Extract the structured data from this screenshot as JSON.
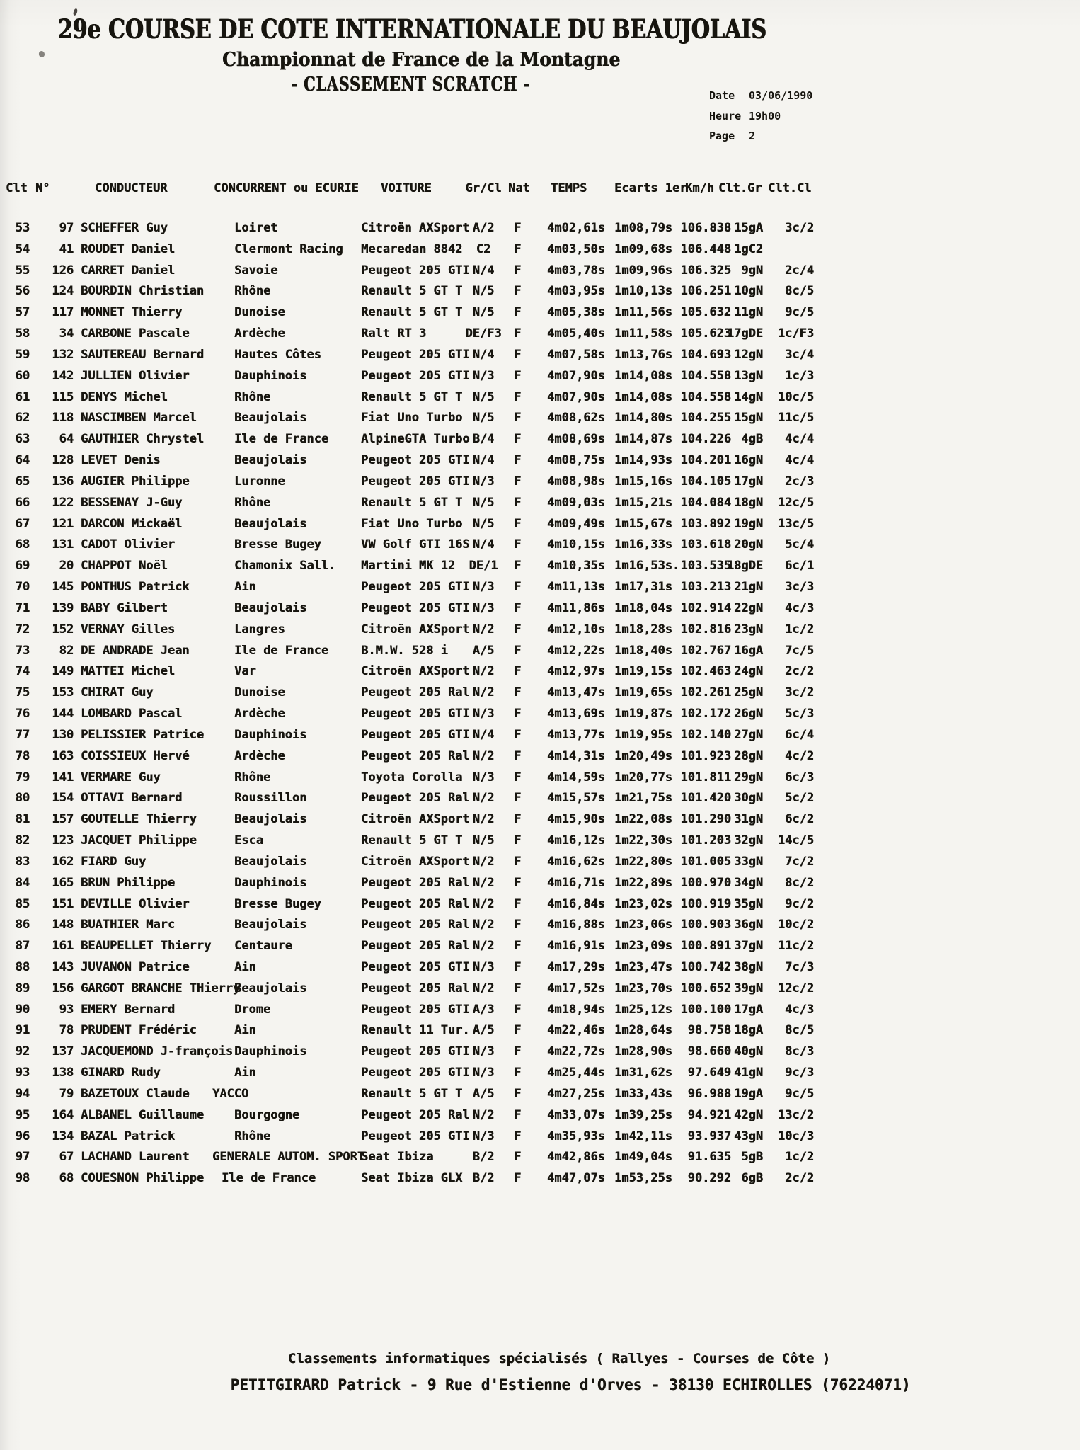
{
  "page": {
    "title": "29e COURSE DE COTE INTERNATIONALE DU BEAUJOLAIS",
    "subtitle": "Championnat de France de la Montagne",
    "section_title": "- CLASSEMENT SCRATCH -",
    "date": {
      "label": "Date",
      "value": "03/06/1990"
    },
    "heure": {
      "label": "Heure",
      "value": "19h00"
    },
    "page_number": {
      "label": "Page",
      "value": "2"
    }
  },
  "table": {
    "columns": {
      "clt": "Clt",
      "num": "N°",
      "driver": "CONDUCTEUR",
      "team": "CONCURRENT ou ECURIE",
      "car": "VOITURE",
      "gr_cl": "Gr/Cl",
      "nat": "Nat",
      "temps": "TEMPS",
      "ecart": "Ecarts 1er",
      "kmh": "Km/h",
      "clt_gr": "Clt.Gr",
      "clt_cl": "Clt.Cl"
    },
    "keys": [
      "clt",
      "num",
      "driver",
      "team",
      "car",
      "gr_cl",
      "nat",
      "temps",
      "ecart",
      "kmh",
      "clt_gr",
      "clt_cl"
    ],
    "rows": [
      [
        "53",
        "97",
        "SCHEFFER Guy",
        "Loiret",
        "Citroën AXSport",
        "A/2",
        "F",
        "4m02,61s",
        "1m08,79s",
        "106.838",
        "15gA",
        "3c/2"
      ],
      [
        "54",
        "41",
        "ROUDET Daniel",
        "Clermont Racing",
        "Mecaredan 8842",
        "C2",
        "F",
        "4m03,50s",
        "1m09,68s",
        "106.448",
        "1gC2",
        ""
      ],
      [
        "55",
        "126",
        "CARRET Daniel",
        "Savoie",
        "Peugeot 205 GTI",
        "N/4",
        "F",
        "4m03,78s",
        "1m09,96s",
        "106.325",
        "9gN",
        "2c/4"
      ],
      [
        "56",
        "124",
        "BOURDIN Christian",
        "Rhône",
        "Renault 5 GT T",
        "N/5",
        "F",
        "4m03,95s",
        "1m10,13s",
        "106.251",
        "10gN",
        "8c/5"
      ],
      [
        "57",
        "117",
        "MONNET Thierry",
        "Dunoise",
        "Renault 5 GT T",
        "N/5",
        "F",
        "4m05,38s",
        "1m11,56s",
        "105.632",
        "11gN",
        "9c/5"
      ],
      [
        "58",
        "34",
        "CARBONE Pascale",
        "Ardèche",
        "Ralt RT 3",
        "DE/F3",
        "F",
        "4m05,40s",
        "1m11,58s",
        "105.623",
        "17gDE",
        "1c/F3"
      ],
      [
        "59",
        "132",
        "SAUTEREAU Bernard",
        "Hautes Côtes",
        "Peugeot 205 GTI",
        "N/4",
        "F",
        "4m07,58s",
        "1m13,76s",
        "104.693",
        "12gN",
        "3c/4"
      ],
      [
        "60",
        "142",
        "JULLIEN Olivier",
        "Dauphinois",
        "Peugeot 205 GTI",
        "N/3",
        "F",
        "4m07,90s",
        "1m14,08s",
        "104.558",
        "13gN",
        "1c/3"
      ],
      [
        "61",
        "115",
        "DENYS Michel",
        "Rhône",
        "Renault 5 GT T",
        "N/5",
        "F",
        "4m07,90s",
        "1m14,08s",
        "104.558",
        "14gN",
        "10c/5"
      ],
      [
        "62",
        "118",
        "NASCIMBEN Marcel",
        "Beaujolais",
        "Fiat Uno Turbo",
        "N/5",
        "F",
        "4m08,62s",
        "1m14,80s",
        "104.255",
        "15gN",
        "11c/5"
      ],
      [
        "63",
        "64",
        "GAUTHIER Chrystel",
        "Ile de France",
        "AlpineGTA Turbo",
        "B/4",
        "F",
        "4m08,69s",
        "1m14,87s",
        "104.226",
        "4gB",
        "4c/4"
      ],
      [
        "64",
        "128",
        "LEVET Denis",
        "Beaujolais",
        "Peugeot 205 GTI",
        "N/4",
        "F",
        "4m08,75s",
        "1m14,93s",
        "104.201",
        "16gN",
        "4c/4"
      ],
      [
        "65",
        "136",
        "AUGIER Philippe",
        "Luronne",
        "Peugeot 205 GTI",
        "N/3",
        "F",
        "4m08,98s",
        "1m15,16s",
        "104.105",
        "17gN",
        "2c/3"
      ],
      [
        "66",
        "122",
        "BESSENAY J-Guy",
        "Rhône",
        "Renault 5 GT T",
        "N/5",
        "F",
        "4m09,03s",
        "1m15,21s",
        "104.084",
        "18gN",
        "12c/5"
      ],
      [
        "67",
        "121",
        "DARCON Mickaël",
        "Beaujolais",
        "Fiat Uno Turbo",
        "N/5",
        "F",
        "4m09,49s",
        "1m15,67s",
        "103.892",
        "19gN",
        "13c/5"
      ],
      [
        "68",
        "131",
        "CADOT Olivier",
        "Bresse Bugey",
        "VW Golf GTI 16S",
        "N/4",
        "F",
        "4m10,15s",
        "1m16,33s",
        "103.618",
        "20gN",
        "5c/4"
      ],
      [
        "69",
        "20",
        "CHAPPOT Noël",
        "Chamonix Sall.",
        "Martini MK 12",
        "DE/1",
        "F",
        "4m10,35s",
        "1m16,53s.",
        "103.535",
        "18gDE",
        "6c/1"
      ],
      [
        "70",
        "145",
        "PONTHUS Patrick",
        "Ain",
        "Peugeot 205 GTI",
        "N/3",
        "F",
        "4m11,13s",
        "1m17,31s",
        "103.213",
        "21gN",
        "3c/3"
      ],
      [
        "71",
        "139",
        "BABY Gilbert",
        "Beaujolais",
        "Peugeot 205 GTI",
        "N/3",
        "F",
        "4m11,86s",
        "1m18,04s",
        "102.914",
        "22gN",
        "4c/3"
      ],
      [
        "72",
        "152",
        "VERNAY Gilles",
        "Langres",
        "Citroën AXSport",
        "N/2",
        "F",
        "4m12,10s",
        "1m18,28s",
        "102.816",
        "23gN",
        "1c/2"
      ],
      [
        "73",
        "82",
        "DE ANDRADE Jean",
        "Ile de France",
        "B.M.W. 528 i",
        "A/5",
        "F",
        "4m12,22s",
        "1m18,40s",
        "102.767",
        "16gA",
        "7c/5"
      ],
      [
        "74",
        "149",
        "MATTEI Michel",
        "Var",
        "Citroën AXSport",
        "N/2",
        "F",
        "4m12,97s",
        "1m19,15s",
        "102.463",
        "24gN",
        "2c/2"
      ],
      [
        "75",
        "153",
        "CHIRAT Guy",
        "Dunoise",
        "Peugeot 205 Ral",
        "N/2",
        "F",
        "4m13,47s",
        "1m19,65s",
        "102.261",
        "25gN",
        "3c/2"
      ],
      [
        "76",
        "144",
        "LOMBARD Pascal",
        "Ardèche",
        "Peugeot 205 GTI",
        "N/3",
        "F",
        "4m13,69s",
        "1m19,87s",
        "102.172",
        "26gN",
        "5c/3"
      ],
      [
        "77",
        "130",
        "PELISSIER Patrice",
        "Dauphinois",
        "Peugeot 205 GTI",
        "N/4",
        "F",
        "4m13,77s",
        "1m19,95s",
        "102.140",
        "27gN",
        "6c/4"
      ],
      [
        "78",
        "163",
        "COISSIEUX Hervé",
        "Ardèche",
        "Peugeot 205 Ral",
        "N/2",
        "F",
        "4m14,31s",
        "1m20,49s",
        "101.923",
        "28gN",
        "4c/2"
      ],
      [
        "79",
        "141",
        "VERMARE Guy",
        "Rhône",
        "Toyota Corolla",
        "N/3",
        "F",
        "4m14,59s",
        "1m20,77s",
        "101.811",
        "29gN",
        "6c/3"
      ],
      [
        "80",
        "154",
        "OTTAVI Bernard",
        "Roussillon",
        "Peugeot 205 Ral",
        "N/2",
        "F",
        "4m15,57s",
        "1m21,75s",
        "101.420",
        "30gN",
        "5c/2"
      ],
      [
        "81",
        "157",
        "GOUTELLE Thierry",
        "Beaujolais",
        "Citroën AXSport",
        "N/2",
        "F",
        "4m15,90s",
        "1m22,08s",
        "101.290",
        "31gN",
        "6c/2"
      ],
      [
        "82",
        "123",
        "JACQUET Philippe",
        "Esca",
        "Renault 5 GT T",
        "N/5",
        "F",
        "4m16,12s",
        "1m22,30s",
        "101.203",
        "32gN",
        "14c/5"
      ],
      [
        "83",
        "162",
        "FIARD Guy",
        "Beaujolais",
        "Citroën AXSport",
        "N/2",
        "F",
        "4m16,62s",
        "1m22,80s",
        "101.005",
        "33gN",
        "7c/2"
      ],
      [
        "84",
        "165",
        "BRUN Philippe",
        "Dauphinois",
        "Peugeot 205 Ral",
        "N/2",
        "F",
        "4m16,71s",
        "1m22,89s",
        "100.970",
        "34gN",
        "8c/2"
      ],
      [
        "85",
        "151",
        "DEVILLE Olivier",
        "Bresse Bugey",
        "Peugeot 205 Ral",
        "N/2",
        "F",
        "4m16,84s",
        "1m23,02s",
        "100.919",
        "35gN",
        "9c/2"
      ],
      [
        "86",
        "148",
        "BUATHIER Marc",
        "Beaujolais",
        "Peugeot 205 Ral",
        "N/2",
        "F",
        "4m16,88s",
        "1m23,06s",
        "100.903",
        "36gN",
        "10c/2"
      ],
      [
        "87",
        "161",
        "BEAUPELLET Thierry",
        "Centaure",
        "Peugeot 205 Ral",
        "N/2",
        "F",
        "4m16,91s",
        "1m23,09s",
        "100.891",
        "37gN",
        "11c/2"
      ],
      [
        "88",
        "143",
        "JUVANON Patrice",
        "Ain",
        "Peugeot 205 GTI",
        "N/3",
        "F",
        "4m17,29s",
        "1m23,47s",
        "100.742",
        "38gN",
        "7c/3"
      ],
      [
        "89",
        "156",
        "GARGOT BRANCHE THierry",
        "Beaujolais",
        "Peugeot 205 Ral",
        "N/2",
        "F",
        "4m17,52s",
        "1m23,70s",
        "100.652",
        "39gN",
        "12c/2"
      ],
      [
        "90",
        "93",
        "EMERY Bernard",
        "Drome",
        "Peugeot 205 GTI",
        "A/3",
        "F",
        "4m18,94s",
        "1m25,12s",
        "100.100",
        "17gA",
        "4c/3"
      ],
      [
        "91",
        "78",
        "PRUDENT Frédéric",
        "Ain",
        "Renault 11 Tur.",
        "A/5",
        "F",
        "4m22,46s",
        "1m28,64s",
        "98.758",
        "18gA",
        "8c/5"
      ],
      [
        "92",
        "137",
        "JACQUEMOND J-françois",
        "Dauphinois",
        "Peugeot 205 GTI",
        "N/3",
        "F",
        "4m22,72s",
        "1m28,90s",
        "98.660",
        "40gN",
        "8c/3"
      ],
      [
        "93",
        "138",
        "GINARD Rudy",
        "Ain",
        "Peugeot 205 GTI",
        "N/3",
        "F",
        "4m25,44s",
        "1m31,62s",
        "97.649",
        "41gN",
        "9c/3"
      ],
      [
        "94",
        "79",
        "BAZETOUX Claude",
        "YACCO",
        "Renault 5 GT T",
        "A/5",
        "F",
        "4m27,25s",
        "1m33,43s",
        "96.988",
        "19gA",
        "9c/5"
      ],
      [
        "95",
        "164",
        "ALBANEL Guillaume",
        "Bourgogne",
        "Peugeot 205 Ral",
        "N/2",
        "F",
        "4m33,07s",
        "1m39,25s",
        "94.921",
        "42gN",
        "13c/2"
      ],
      [
        "96",
        "134",
        "BAZAL Patrick",
        "Rhône",
        "Peugeot 205 GTI",
        "N/3",
        "F",
        "4m35,93s",
        "1m42,11s",
        "93.937",
        "43gN",
        "10c/3"
      ],
      [
        "97",
        "67",
        "LACHAND Laurent",
        "GENERALE AUTOM. SPORT",
        "Seat Ibiza",
        "B/2",
        "F",
        "4m42,86s",
        "1m49,04s",
        "91.635",
        "5gB",
        "1c/2"
      ],
      [
        "98",
        "68",
        "COUESNON Philippe",
        "Ile de France",
        "Seat Ibiza GLX",
        "B/2",
        "F",
        "4m47,07s",
        "1m53,25s",
        "90.292",
        "6gB",
        "2c/2"
      ]
    ]
  },
  "footer": {
    "line1": "Classements informatiques spécialisés ( Rallyes - Courses de Côte )",
    "line2": "PETITGIRARD Patrick - 9 Rue d'Estienne d'Orves - 38130 ECHIROLLES (76224071)"
  }
}
